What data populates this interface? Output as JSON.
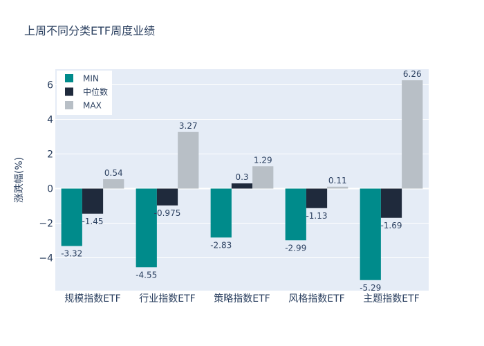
{
  "chart_data": {
    "type": "bar",
    "title": "上周不同分类ETF周度业绩",
    "xlabel": "",
    "ylabel": "涨跌幅(%)",
    "ylim": [
      -5.9,
      6.9
    ],
    "yticks": [
      -4,
      -2,
      0,
      2,
      4,
      6
    ],
    "ytick_labels": [
      "−4",
      "−2",
      "0",
      "2",
      "4",
      "6"
    ],
    "grid": true,
    "legend_position": "top-left",
    "categories": [
      "规模指数ETF",
      "行业指数ETF",
      "策略指数ETF",
      "风格指数ETF",
      "主题指数ETF"
    ],
    "series": [
      {
        "name": "MIN",
        "color": "#008b8b",
        "values": [
          -3.32,
          -4.55,
          -2.83,
          -2.99,
          -5.29
        ],
        "labels": [
          "-3.32",
          "-4.55",
          "-2.83",
          "-2.99",
          "-5.29"
        ]
      },
      {
        "name": "中位数",
        "color": "#1f2a3c",
        "values": [
          -1.45,
          -0.975,
          0.3,
          -1.13,
          -1.69
        ],
        "labels": [
          "-1.45",
          "-0.975",
          "0.3",
          "-1.13",
          "-1.69"
        ]
      },
      {
        "name": "MAX",
        "color": "#b8bfc6",
        "values": [
          0.54,
          3.27,
          1.29,
          0.11,
          6.26
        ],
        "labels": [
          "0.54",
          "3.27",
          "1.29",
          "0.11",
          "6.26"
        ]
      }
    ]
  }
}
